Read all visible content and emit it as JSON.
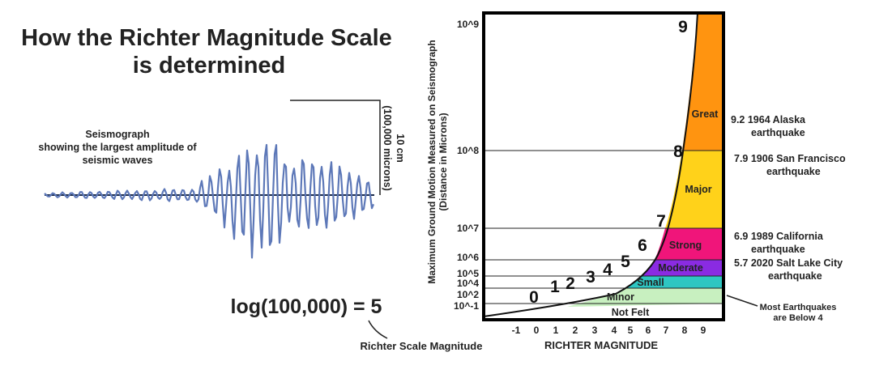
{
  "title_line1": "How the Richter Magnitude Scale",
  "title_line2": "is determined",
  "seismo_caption": [
    "Seismograph",
    "showing the largest amplitude of",
    "seismic waves"
  ],
  "amplitude_label_1": "10 cm",
  "amplitude_label_2": "(100,000 microns)",
  "formula": "log(100,000) = 5",
  "formula_callout": "Richter Scale Magnitude",
  "chart": {
    "y_axis_title_1": "Maximum Ground Motion Measured on Seismograph",
    "y_axis_title_2": "(Distance in Microns)",
    "x_axis_title": "RICHTER MAGNITUDE",
    "y_ticks": [
      "10^9",
      "10^8",
      "10^7",
      "10^6",
      "10^5",
      "10^4",
      "10^2",
      "10^-1"
    ],
    "x_ticks": [
      "-1",
      "0",
      "1",
      "2",
      "3",
      "4",
      "5",
      "6",
      "7",
      "8",
      "9"
    ],
    "curve_numbers": [
      "0",
      "1",
      "2",
      "3",
      "4",
      "5",
      "6",
      "7",
      "8",
      "9"
    ],
    "bands": [
      {
        "label": "Not Felt",
        "color": "#ffffff"
      },
      {
        "label": "Minor",
        "color": "#c8f0c0"
      },
      {
        "label": "Small",
        "color": "#2ec6c2"
      },
      {
        "label": "Moderate",
        "color": "#8a2be2"
      },
      {
        "label": "Strong",
        "color": "#f0157a"
      },
      {
        "label": "Major",
        "color": "#ffd21a"
      },
      {
        "label": "Great",
        "color": "#ff9410"
      }
    ]
  },
  "annotations": {
    "alaska_1": "9.2 1964 Alaska",
    "alaska_2": "earthquake",
    "sf_1": "7.9 1906 San Francisco",
    "sf_2": "earthquake",
    "ca_1": "6.9 1989 California",
    "ca_2": "earthquake",
    "slc_1": "5.7 2020 Salt Lake City",
    "slc_2": "earthquake",
    "most_1": "Most Earthquakes",
    "most_2": "are Below 4"
  }
}
